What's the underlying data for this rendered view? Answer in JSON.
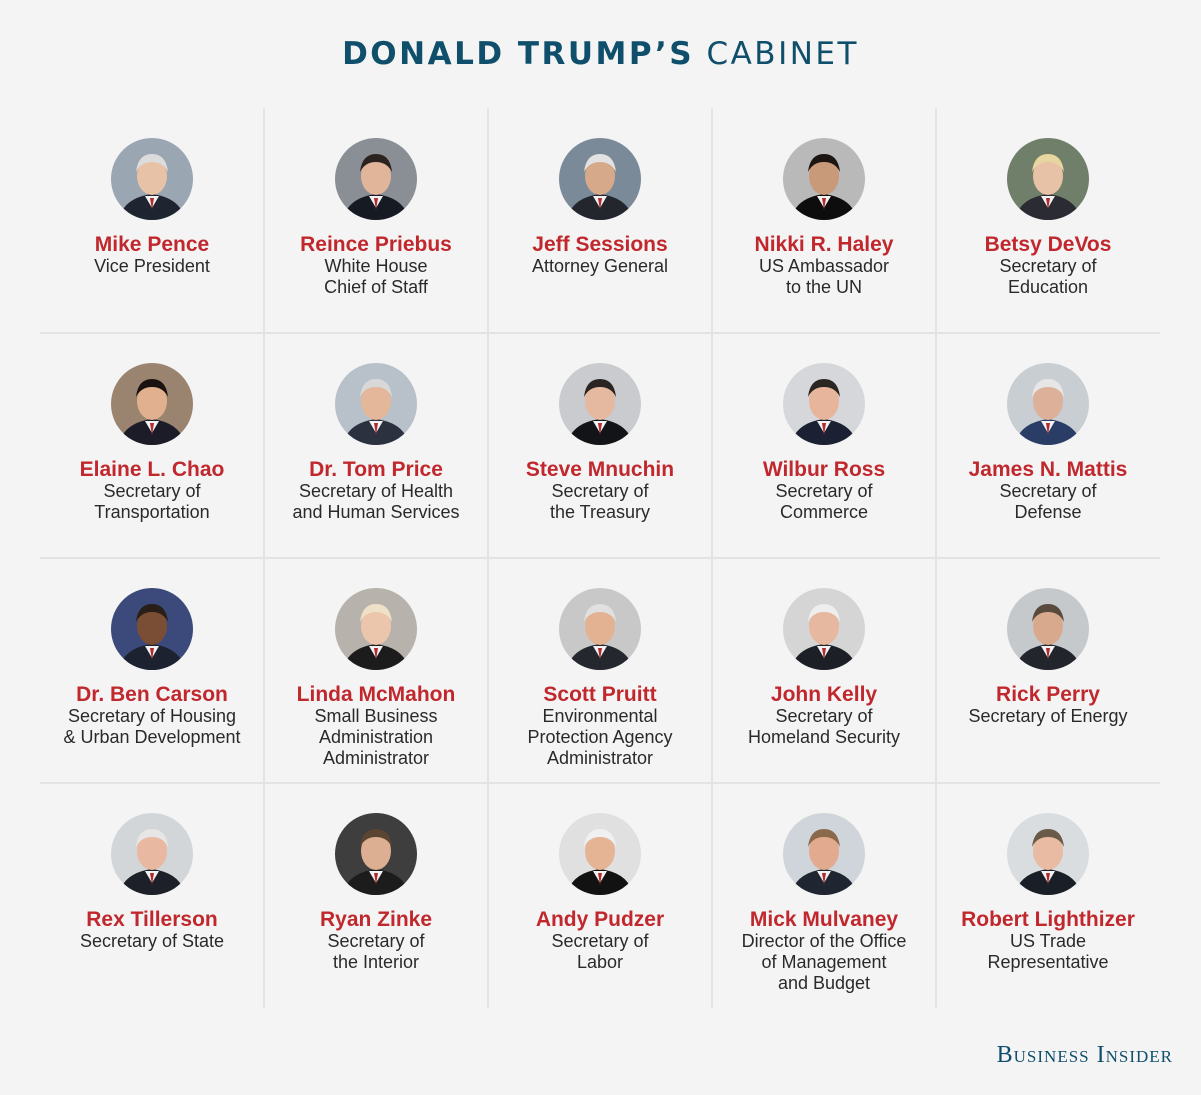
{
  "header": {
    "title_bold": "DONALD TRUMP’S",
    "title_light": "CABINET"
  },
  "brand": "Business Insider",
  "colors": {
    "title": "#0f4f6b",
    "name": "#c0282d",
    "role": "#2a2a2a",
    "background": "#f4f4f4",
    "divider": "#e3e3e3"
  },
  "members": [
    {
      "name": "Mike Pence",
      "role": "Vice President",
      "icon": "portrait-photo"
    },
    {
      "name": "Reince Priebus",
      "role": "White House\nChief of Staff",
      "icon": "portrait-photo"
    },
    {
      "name": "Jeff Sessions",
      "role": "Attorney General",
      "icon": "portrait-photo"
    },
    {
      "name": "Nikki R. Haley",
      "role": "US Ambassador\nto the UN",
      "icon": "portrait-photo"
    },
    {
      "name": "Betsy DeVos",
      "role": "Secretary of\nEducation",
      "icon": "portrait-photo"
    },
    {
      "name": "Elaine L. Chao",
      "role": "Secretary of\nTransportation",
      "icon": "portrait-photo"
    },
    {
      "name": "Dr. Tom Price",
      "role": "Secretary of Health\nand Human Services",
      "icon": "portrait-photo"
    },
    {
      "name": "Steve Mnuchin",
      "role": "Secretary of\nthe Treasury",
      "icon": "portrait-photo"
    },
    {
      "name": "Wilbur Ross",
      "role": "Secretary of\nCommerce",
      "icon": "portrait-photo"
    },
    {
      "name": "James N. Mattis",
      "role": "Secretary of\nDefense",
      "icon": "portrait-photo"
    },
    {
      "name": "Dr. Ben Carson",
      "role": "Secretary of Housing\n& Urban Development",
      "icon": "portrait-photo"
    },
    {
      "name": "Linda McMahon",
      "role": "Small Business\nAdministration\nAdministrator",
      "icon": "portrait-photo"
    },
    {
      "name": "Scott Pruitt",
      "role": "Environmental\nProtection Agency\nAdministrator",
      "icon": "portrait-photo"
    },
    {
      "name": "John Kelly",
      "role": "Secretary of\nHomeland Security",
      "icon": "portrait-photo"
    },
    {
      "name": "Rick Perry",
      "role": "Secretary of Energy",
      "icon": "portrait-photo"
    },
    {
      "name": "Rex Tillerson",
      "role": "Secretary of State",
      "icon": "portrait-photo"
    },
    {
      "name": "Ryan Zinke",
      "role": "Secretary of\nthe Interior",
      "icon": "portrait-photo"
    },
    {
      "name": "Andy Pudzer",
      "role": "Secretary of\nLabor",
      "icon": "portrait-photo"
    },
    {
      "name": "Mick Mulvaney",
      "role": "Director of the Office\nof Management\nand Budget",
      "icon": "portrait-photo"
    },
    {
      "name": "Robert Lighthizer",
      "role": "US Trade\nRepresentative",
      "icon": "portrait-photo"
    }
  ]
}
